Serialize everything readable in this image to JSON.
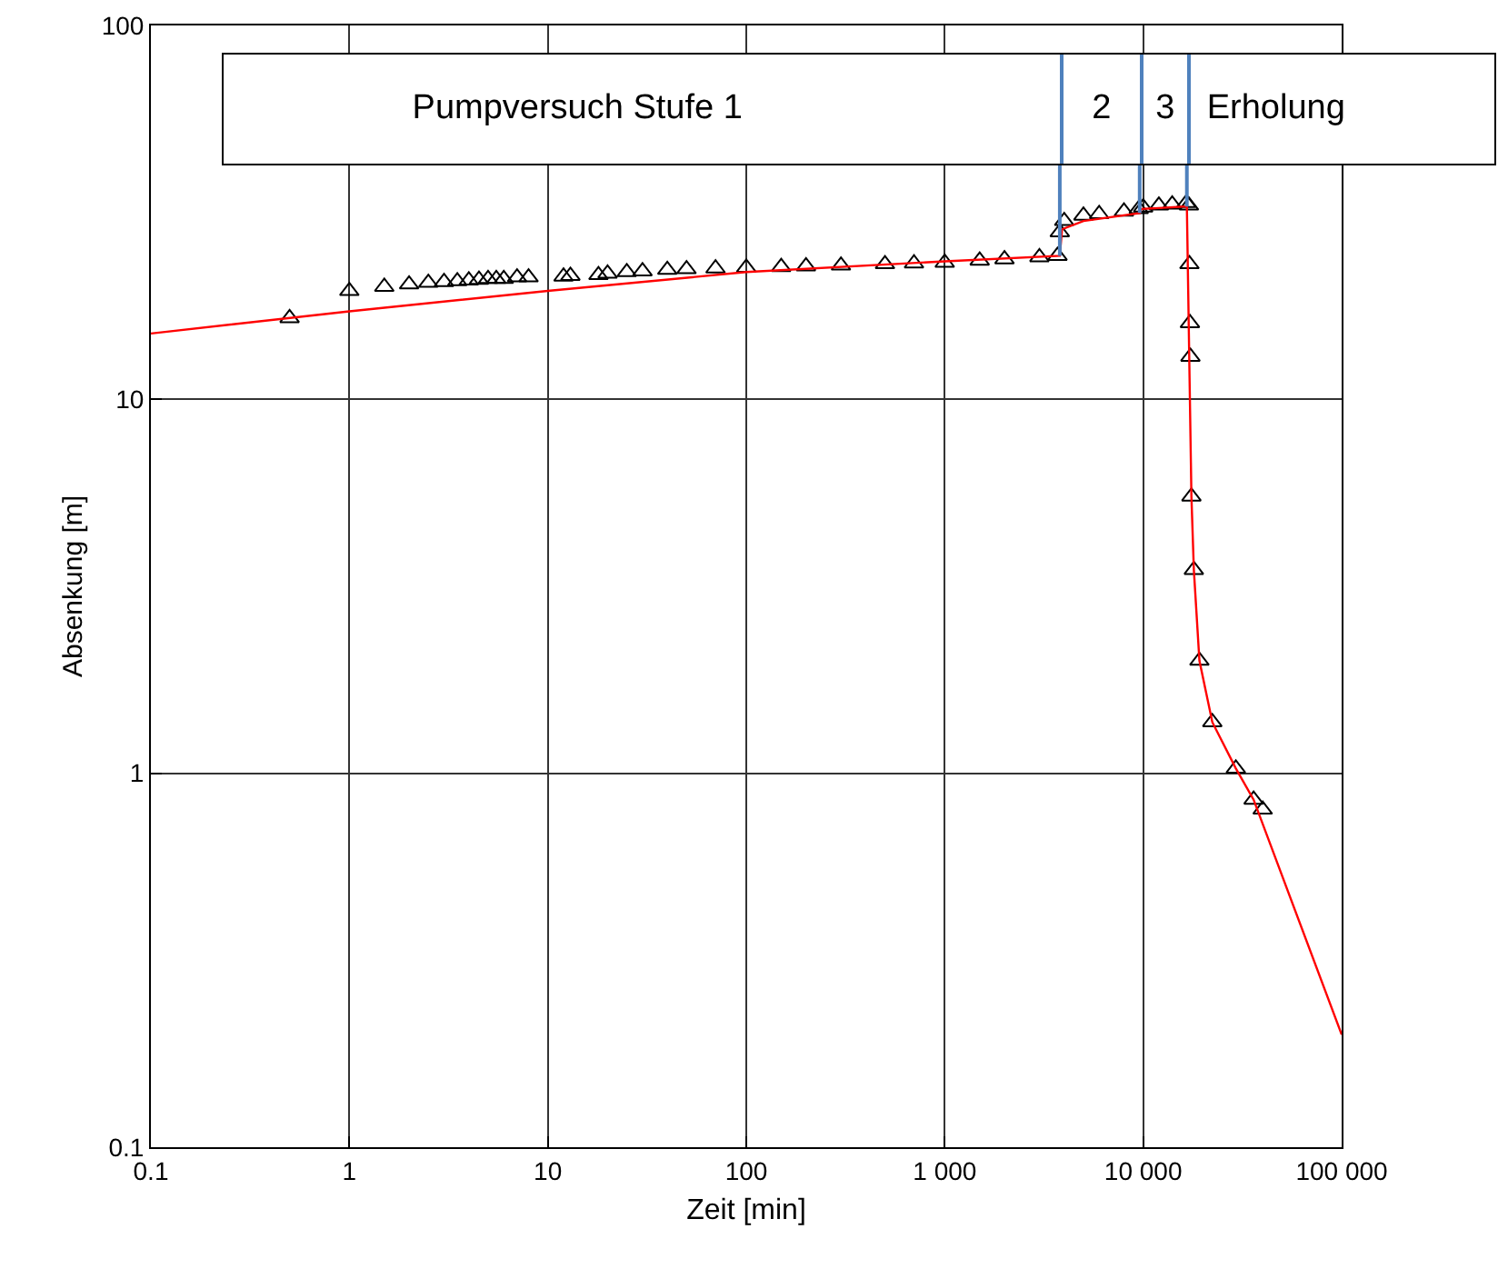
{
  "chart_data": {
    "type": "scatter",
    "xlabel": "Zeit [min]",
    "ylabel": "Absenkung [m]",
    "log": "xy",
    "grid": true,
    "xlim": [
      0.1,
      100000
    ],
    "ylim": [
      0.1,
      100
    ],
    "xticks": [
      0.1,
      1,
      10,
      100,
      {
        "value": 1000,
        "label": "1 000"
      },
      {
        "value": 10000,
        "label": "10 000"
      },
      {
        "value": 100000,
        "label": "100 000"
      }
    ],
    "yticks": [
      0.1,
      1,
      10,
      100
    ],
    "series": [
      {
        "color": "#000000",
        "marker": "triangle",
        "x": [
          0.5,
          1,
          1.5,
          2,
          2.5,
          3,
          3.5,
          4,
          4.5,
          5,
          5.5,
          6,
          7,
          8,
          12,
          13,
          18,
          20,
          25,
          30,
          40,
          50,
          70,
          100,
          150,
          200,
          300,
          500,
          700,
          1000,
          1500,
          2000,
          3000,
          3700,
          3800,
          4000,
          5000,
          6000,
          8000,
          9500,
          10000,
          12000,
          14000,
          16500,
          17000,
          17100,
          17200,
          17300,
          17500,
          18000,
          19200,
          22300,
          29300,
          36000,
          40000
        ],
        "values": [
          16.5,
          19.5,
          20,
          20.3,
          20.5,
          20.6,
          20.7,
          20.8,
          20.9,
          21,
          21,
          21,
          21.2,
          21.2,
          21.3,
          21.4,
          21.5,
          21.7,
          21.9,
          22,
          22.2,
          22.3,
          22.4,
          22.5,
          22.6,
          22.7,
          22.8,
          23,
          23.1,
          23.2,
          23.5,
          23.7,
          24,
          24.2,
          28,
          30,
          31,
          31.3,
          31.8,
          32.3,
          32.6,
          33,
          33.2,
          33.5,
          33,
          23,
          16,
          13,
          5.5,
          3.5,
          2,
          1.37,
          1.03,
          0.85,
          0.8
        ]
      },
      {
        "type": "line",
        "color": "#ff0000",
        "marker": "none",
        "line_style": "solid",
        "x": [
          0.1,
          1,
          10,
          100,
          1000,
          3800,
          3900,
          5000,
          9600,
          9800,
          16600,
          17500,
          18000,
          19200,
          22300,
          29300,
          36000,
          100000
        ],
        "values": [
          15,
          17.2,
          19.5,
          21.9,
          23.4,
          24.2,
          28.5,
          30,
          31.5,
          32.3,
          32.8,
          5.5,
          3.5,
          2,
          1.37,
          1.03,
          0.85,
          0.2
        ]
      }
    ],
    "ref_lines": [
      {
        "axis": "x",
        "value": 3800,
        "color": "#4f81bd"
      },
      {
        "axis": "x",
        "value": 9600,
        "color": "#4f81bd"
      },
      {
        "axis": "x",
        "value": 16600,
        "color": "#4f81bd"
      }
    ],
    "annotations": [
      "Pumpversuch Stufe 1",
      "2",
      "3",
      "Erholung"
    ]
  }
}
